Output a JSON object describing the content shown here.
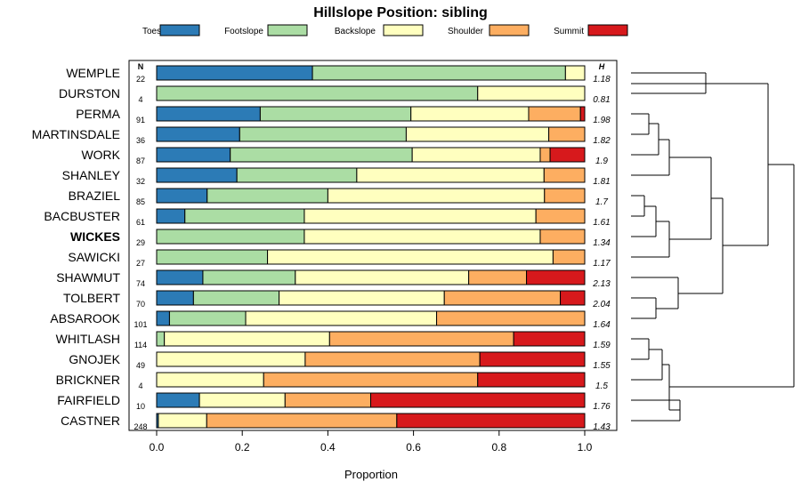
{
  "chart_data": {
    "type": "bar",
    "stacked": true,
    "orientation": "horizontal",
    "title": "Hillslope Position: sibling",
    "xlabel": "Proportion",
    "ylabel": "",
    "xlim": [
      0,
      1
    ],
    "x_ticks": [
      "0.0",
      "0.2",
      "0.4",
      "0.6",
      "0.8",
      "1.0"
    ],
    "n_header": "N",
    "h_header": "H",
    "highlight": "WICKES",
    "series": [
      {
        "name": "Toeslope",
        "color": "#2c7bb6"
      },
      {
        "name": "Footslope",
        "color": "#abdda4"
      },
      {
        "name": "Backslope",
        "color": "#ffffbf"
      },
      {
        "name": "Shoulder",
        "color": "#fdae61"
      },
      {
        "name": "Summit",
        "color": "#d7191c"
      }
    ],
    "categories": [
      {
        "name": "WEMPLE",
        "n": "22",
        "h": "1.18",
        "values": [
          0.364,
          0.591,
          0.045,
          0,
          0
        ]
      },
      {
        "name": "DURSTON",
        "n": "4",
        "h": "0.81",
        "values": [
          0,
          0.75,
          0.25,
          0,
          0
        ]
      },
      {
        "name": "PERMA",
        "n": "91",
        "h": "1.98",
        "values": [
          0.242,
          0.352,
          0.275,
          0.121,
          0.01
        ]
      },
      {
        "name": "MARTINSDALE",
        "n": "36",
        "h": "1.82",
        "values": [
          0.194,
          0.389,
          0.333,
          0.084,
          0
        ]
      },
      {
        "name": "WORK",
        "n": "87",
        "h": "1.9",
        "values": [
          0.172,
          0.425,
          0.299,
          0.023,
          0.081
        ]
      },
      {
        "name": "SHANLEY",
        "n": "32",
        "h": "1.81",
        "values": [
          0.1875,
          0.28,
          0.4375,
          0.095,
          0
        ]
      },
      {
        "name": "BRAZIEL",
        "n": "85",
        "h": "1.7",
        "values": [
          0.118,
          0.282,
          0.506,
          0.094,
          0
        ]
      },
      {
        "name": "BACBUSTER",
        "n": "61",
        "h": "1.61",
        "values": [
          0.066,
          0.279,
          0.541,
          0.114,
          0
        ]
      },
      {
        "name": "WICKES",
        "n": "29",
        "h": "1.34",
        "values": [
          0,
          0.345,
          0.551,
          0.104,
          0
        ]
      },
      {
        "name": "SAWICKI",
        "n": "27",
        "h": "1.17",
        "values": [
          0,
          0.259,
          0.667,
          0.074,
          0
        ]
      },
      {
        "name": "SHAWMUT",
        "n": "74",
        "h": "2.13",
        "values": [
          0.108,
          0.216,
          0.405,
          0.135,
          0.136
        ]
      },
      {
        "name": "TOLBERT",
        "n": "70",
        "h": "2.04",
        "values": [
          0.086,
          0.2,
          0.386,
          0.271,
          0.057
        ]
      },
      {
        "name": "ABSAROOK",
        "n": "101",
        "h": "1.64",
        "values": [
          0.03,
          0.178,
          0.446,
          0.346,
          0
        ]
      },
      {
        "name": "WHITLASH",
        "n": "114",
        "h": "1.59",
        "values": [
          0.0,
          0.018,
          0.386,
          0.43,
          0.166
        ]
      },
      {
        "name": "GNOJEK",
        "n": "49",
        "h": "1.55",
        "values": [
          0,
          0,
          0.347,
          0.408,
          0.245
        ]
      },
      {
        "name": "BRICKNER",
        "n": "4",
        "h": "1.5",
        "values": [
          0,
          0,
          0.25,
          0.5,
          0.25
        ]
      },
      {
        "name": "FAIRFIELD",
        "n": "10",
        "h": "1.76",
        "values": [
          0.1,
          0,
          0.2,
          0.2,
          0.5
        ]
      },
      {
        "name": "CASTNER",
        "n": "248",
        "h": "1.43",
        "values": [
          0.004,
          0,
          0.113,
          0.444,
          0.439
        ]
      }
    ]
  }
}
